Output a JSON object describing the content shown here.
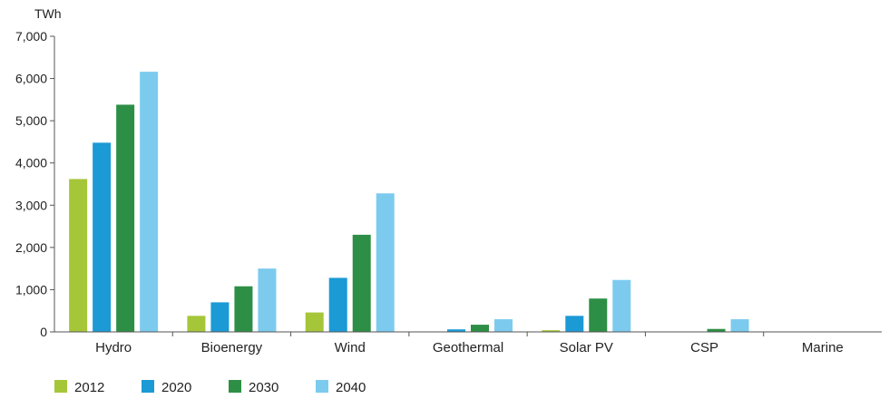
{
  "chart_data": {
    "type": "bar",
    "unit_label": "TWh",
    "categories": [
      "Hydro",
      "Bioenergy",
      "Wind",
      "Geothermal",
      "Solar PV",
      "CSP",
      "Marine"
    ],
    "ylim": [
      0,
      7000
    ],
    "yticks": [
      0,
      1000,
      2000,
      3000,
      4000,
      5000,
      6000,
      7000
    ],
    "ytick_labels": [
      "0",
      "1,000",
      "2,000",
      "3,000",
      "4,000",
      "5,000",
      "6,000",
      "7,000"
    ],
    "grid": false,
    "legend_position": "bottom-left",
    "series": [
      {
        "name": "2012",
        "color": "#a6c63a",
        "values": [
          3620,
          380,
          460,
          0,
          40,
          0,
          0
        ]
      },
      {
        "name": "2020",
        "color": "#1b9ad6",
        "values": [
          4480,
          700,
          1280,
          60,
          380,
          0,
          0
        ]
      },
      {
        "name": "2030",
        "color": "#2d8f45",
        "values": [
          5380,
          1080,
          2300,
          170,
          790,
          70,
          0
        ]
      },
      {
        "name": "2040",
        "color": "#7ccbef",
        "values": [
          6160,
          1500,
          3280,
          300,
          1230,
          300,
          0
        ]
      }
    ]
  }
}
